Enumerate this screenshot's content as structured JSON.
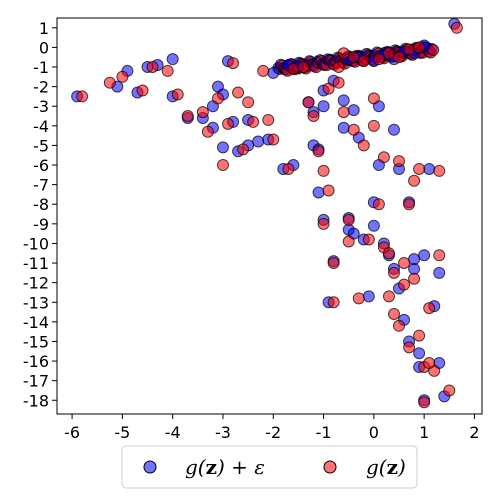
{
  "chart_data": {
    "type": "scatter",
    "xlim": [
      -6.3,
      2.15
    ],
    "ylim": [
      -18.7,
      1.5
    ],
    "x_ticks": [
      -6,
      -5,
      -4,
      -3,
      -2,
      -1,
      0,
      1,
      2
    ],
    "x_tick_labels": [
      "-6",
      "-5",
      "-4",
      "-3",
      "-2",
      "-1",
      "0",
      "1",
      "2"
    ],
    "y_ticks": [
      1,
      0,
      -1,
      -2,
      -3,
      -4,
      -5,
      -6,
      -7,
      -8,
      -9,
      -10,
      -11,
      -12,
      -13,
      -14,
      -15,
      -16,
      -17,
      -18
    ],
    "y_tick_labels": [
      "1",
      "0",
      "-1",
      "-2",
      "-3",
      "-4",
      "-5",
      "-6",
      "-7",
      "-8",
      "-9",
      "-10",
      "-11",
      "-12",
      "-13",
      "-14",
      "-15",
      "-16",
      "-17",
      "-18"
    ],
    "grid": false,
    "legend_position": "bottom-outside",
    "series": [
      {
        "name": "g(z) + ε",
        "color": "#0000ff",
        "points": [
          [
            1.6,
            1.2
          ],
          [
            -5.9,
            -2.5
          ],
          [
            -5.1,
            -2.0
          ],
          [
            -4.9,
            -1.2
          ],
          [
            -4.7,
            -2.3
          ],
          [
            -4.5,
            -1.0
          ],
          [
            -4.3,
            -0.9
          ],
          [
            -4.0,
            -0.6
          ],
          [
            -4.0,
            -2.5
          ],
          [
            -3.7,
            -3.6
          ],
          [
            -3.4,
            -3.6
          ],
          [
            -3.2,
            -3.0
          ],
          [
            -3.2,
            -4.1
          ],
          [
            -3.1,
            -2.0
          ],
          [
            -3.0,
            -2.4
          ],
          [
            -3.0,
            -5.1
          ],
          [
            -2.9,
            -0.7
          ],
          [
            -2.8,
            -3.8
          ],
          [
            -2.7,
            -5.3
          ],
          [
            -2.5,
            -3.7
          ],
          [
            -2.5,
            -5.0
          ],
          [
            -2.3,
            -4.8
          ],
          [
            -2.1,
            -4.7
          ],
          [
            -2.0,
            -1.3
          ],
          [
            -1.8,
            -6.2
          ],
          [
            -1.7,
            -0.9
          ],
          [
            -1.6,
            -6.0
          ],
          [
            -1.5,
            -1.0
          ],
          [
            -1.3,
            -2.8
          ],
          [
            -1.2,
            -3.3
          ],
          [
            -1.2,
            -5.0
          ],
          [
            -1.1,
            -5.2
          ],
          [
            -1.1,
            -7.4
          ],
          [
            -1.0,
            -2.2
          ],
          [
            -1.0,
            -3.0
          ],
          [
            -1.0,
            -8.8
          ],
          [
            -0.9,
            -13.0
          ],
          [
            -0.8,
            -1.7
          ],
          [
            -0.8,
            -10.9
          ],
          [
            -0.6,
            -2.7
          ],
          [
            -0.6,
            -4.1
          ],
          [
            -0.5,
            -8.7
          ],
          [
            -0.5,
            -9.3
          ],
          [
            -0.4,
            -3.2
          ],
          [
            -0.4,
            -9.5
          ],
          [
            -0.3,
            -4.6
          ],
          [
            -0.2,
            -9.8
          ],
          [
            -0.1,
            -12.7
          ],
          [
            0.0,
            -7.9
          ],
          [
            0.0,
            -9.1
          ],
          [
            0.1,
            -3.0
          ],
          [
            0.1,
            -6.0
          ],
          [
            0.2,
            -10.0
          ],
          [
            0.3,
            -10.6
          ],
          [
            0.4,
            -4.2
          ],
          [
            0.4,
            -11.3
          ],
          [
            0.5,
            -6.2
          ],
          [
            0.5,
            -12.3
          ],
          [
            0.6,
            -13.9
          ],
          [
            0.7,
            -7.9
          ],
          [
            0.7,
            -15.0
          ],
          [
            0.8,
            -11.3
          ],
          [
            0.8,
            -10.8
          ],
          [
            0.9,
            -15.6
          ],
          [
            0.9,
            -16.3
          ],
          [
            1.0,
            -10.6
          ],
          [
            1.0,
            -18.0
          ],
          [
            1.1,
            -6.2
          ],
          [
            1.2,
            -13.2
          ],
          [
            1.3,
            -16.1
          ],
          [
            1.3,
            -11.5
          ],
          [
            1.4,
            -17.8
          ],
          [
            0.2,
            -0.4
          ],
          [
            0.4,
            -0.6
          ],
          [
            0.6,
            -0.2
          ],
          [
            0.8,
            -0.3
          ],
          [
            1.0,
            0.1
          ],
          [
            -0.5,
            -0.6
          ],
          [
            -0.3,
            -0.5
          ],
          [
            0.0,
            -0.7
          ]
        ]
      },
      {
        "name": "g(z)",
        "color": "#ff0000",
        "points": [
          [
            1.65,
            1.0
          ],
          [
            -5.8,
            -2.5
          ],
          [
            -5.25,
            -1.8
          ],
          [
            -5.0,
            -1.5
          ],
          [
            -4.6,
            -2.2
          ],
          [
            -4.4,
            -1.0
          ],
          [
            -4.1,
            -1.2
          ],
          [
            -3.9,
            -2.4
          ],
          [
            -3.7,
            -3.5
          ],
          [
            -3.4,
            -3.3
          ],
          [
            -3.3,
            -4.3
          ],
          [
            -3.1,
            -2.6
          ],
          [
            -3.0,
            -6.0
          ],
          [
            -2.9,
            -3.9
          ],
          [
            -2.8,
            -0.8
          ],
          [
            -2.7,
            -2.3
          ],
          [
            -2.6,
            -5.2
          ],
          [
            -2.5,
            -2.8
          ],
          [
            -2.4,
            -3.8
          ],
          [
            -2.2,
            -1.2
          ],
          [
            -2.1,
            -3.7
          ],
          [
            -2.0,
            -4.7
          ],
          [
            -1.7,
            -6.2
          ],
          [
            -1.6,
            -1.1
          ],
          [
            -1.4,
            -1.0
          ],
          [
            -1.3,
            -2.8
          ],
          [
            -1.2,
            -3.5
          ],
          [
            -1.1,
            -5.3
          ],
          [
            -1.0,
            -6.3
          ],
          [
            -1.0,
            -9.0
          ],
          [
            -0.9,
            -2.1
          ],
          [
            -0.9,
            -7.3
          ],
          [
            -0.8,
            -13.0
          ],
          [
            -0.8,
            -11.0
          ],
          [
            -0.7,
            -1.8
          ],
          [
            -0.6,
            -3.3
          ],
          [
            -0.5,
            -8.8
          ],
          [
            -0.5,
            -9.9
          ],
          [
            -0.4,
            -4.2
          ],
          [
            -0.3,
            -12.8
          ],
          [
            -0.2,
            -5.0
          ],
          [
            -0.1,
            -9.8
          ],
          [
            0.0,
            -2.6
          ],
          [
            0.0,
            -4.0
          ],
          [
            0.1,
            -8.0
          ],
          [
            0.2,
            -10.2
          ],
          [
            0.2,
            -5.6
          ],
          [
            0.3,
            -12.7
          ],
          [
            0.3,
            -10.5
          ],
          [
            0.4,
            -13.6
          ],
          [
            0.5,
            -14.2
          ],
          [
            0.5,
            -5.8
          ],
          [
            0.6,
            -11.0
          ],
          [
            0.7,
            -8.0
          ],
          [
            0.7,
            -15.3
          ],
          [
            0.8,
            -6.8
          ],
          [
            0.8,
            -11.8
          ],
          [
            0.9,
            -14.7
          ],
          [
            0.9,
            -6.2
          ],
          [
            1.0,
            -16.3
          ],
          [
            1.0,
            -18.1
          ],
          [
            1.1,
            -13.3
          ],
          [
            1.2,
            -16.5
          ],
          [
            1.3,
            -6.3
          ],
          [
            1.3,
            -10.6
          ],
          [
            1.5,
            -17.5
          ],
          [
            1.1,
            -16.1
          ],
          [
            0.3,
            -0.3
          ],
          [
            0.5,
            -0.5
          ],
          [
            0.7,
            -0.1
          ],
          [
            0.9,
            0.0
          ],
          [
            -0.4,
            -0.5
          ],
          [
            -0.2,
            -0.7
          ],
          [
            0.1,
            -0.6
          ],
          [
            -0.6,
            -0.3
          ],
          [
            -0.7,
            -1.0
          ],
          [
            0.6,
            -12.1
          ],
          [
            0.4,
            -11.5
          ]
        ]
      }
    ],
    "dense_band": {
      "x_range": [
        -1.9,
        1.15
      ],
      "y_start": -1.05,
      "y_end": -0.05,
      "n": 60
    }
  },
  "legend": {
    "items": [
      {
        "label": "g(z) + ε",
        "color": "#0000ff"
      },
      {
        "label": "g(z)",
        "color": "#ff0000"
      }
    ]
  }
}
